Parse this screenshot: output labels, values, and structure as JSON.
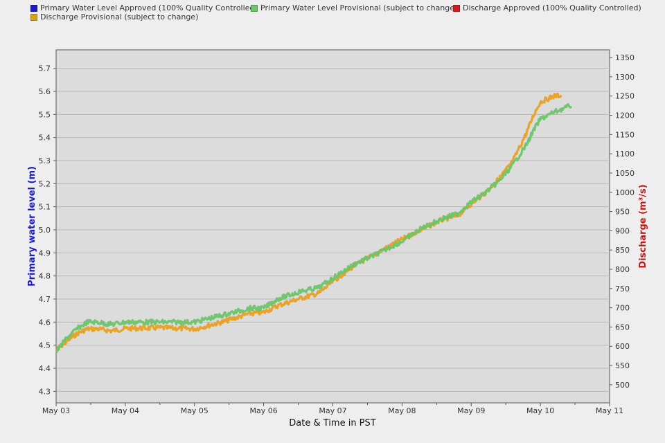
{
  "legend": {
    "items": [
      {
        "label": "Primary Water Level Approved (100% Quality Controlled)",
        "color": "#1a1acc"
      },
      {
        "label": "Primary Water Level Provisional (subject to change)",
        "color": "#6cc46c"
      },
      {
        "label": "Discharge Approved (100% Quality Controlled)",
        "color": "#d01e1e"
      },
      {
        "label": "Discharge Provisional (subject to change)",
        "color": "#d4a020"
      }
    ]
  },
  "chart_data": {
    "type": "line",
    "title": "",
    "xlabel": "Date & Time in PST",
    "ylabel_left": "Primary water level (m)",
    "ylabel_right": "Discharge (m³/s)",
    "x_ticks": [
      "May 03",
      "May 04",
      "May 05",
      "May 06",
      "May 07",
      "May 08",
      "May 09",
      "May 10",
      "May 11"
    ],
    "x_range_days": [
      0,
      8
    ],
    "ylim_left": [
      4.25,
      5.78
    ],
    "yticks_left": [
      "4.3",
      "4.4",
      "4.5",
      "4.6",
      "4.7",
      "4.8",
      "4.9",
      "5.0",
      "5.1",
      "5.2",
      "5.3",
      "5.4",
      "5.5",
      "5.6",
      "5.7"
    ],
    "ylim_right": [
      453,
      1370
    ],
    "yticks_right": [
      "500",
      "550",
      "600",
      "650",
      "700",
      "750",
      "800",
      "850",
      "900",
      "950",
      "1000",
      "1050",
      "1100",
      "1150",
      "1200",
      "1250",
      "1300",
      "1350"
    ],
    "grid": true,
    "series": [
      {
        "name": "Primary Water Level Provisional (subject to change)",
        "axis": "left",
        "color": "#6cc46c",
        "x": [
          0,
          0.15,
          0.3,
          0.45,
          0.6,
          0.8,
          1.0,
          1.5,
          2.0,
          2.4,
          2.8,
          3.0,
          3.2,
          3.5,
          3.8,
          4.0,
          4.3,
          4.6,
          5.0,
          5.3,
          5.6,
          5.8,
          6.0,
          6.2,
          6.4,
          6.6,
          6.8,
          6.9,
          7.0,
          7.2,
          7.45
        ],
        "y": [
          4.47,
          4.53,
          4.57,
          4.6,
          4.6,
          4.59,
          4.6,
          4.6,
          4.6,
          4.63,
          4.66,
          4.66,
          4.7,
          4.73,
          4.75,
          4.79,
          4.85,
          4.89,
          4.95,
          5.01,
          5.05,
          5.07,
          5.12,
          5.16,
          5.21,
          5.28,
          5.37,
          5.43,
          5.48,
          5.51,
          5.54
        ]
      },
      {
        "name": "Discharge Provisional (subject to change)",
        "axis": "right",
        "color": "#e8a020",
        "x": [
          0,
          0.15,
          0.3,
          0.45,
          0.6,
          0.8,
          1.0,
          1.5,
          2.0,
          2.4,
          2.8,
          3.0,
          3.2,
          3.5,
          3.8,
          4.0,
          4.3,
          4.6,
          5.0,
          5.3,
          5.6,
          5.8,
          6.0,
          6.2,
          6.4,
          6.6,
          6.8,
          6.9,
          7.0,
          7.2,
          7.3
        ],
        "y": [
          590,
          612,
          633,
          645,
          645,
          640,
          646,
          648,
          645,
          663,
          685,
          688,
          705,
          723,
          738,
          768,
          808,
          838,
          878,
          905,
          930,
          938,
          970,
          998,
          1035,
          1080,
          1155,
          1200,
          1235,
          1250,
          1252
        ]
      }
    ]
  }
}
